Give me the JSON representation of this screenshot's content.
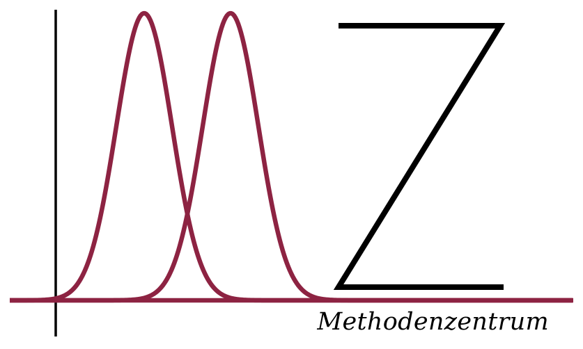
{
  "logo": {
    "wordmark": "Methodenzentrum",
    "letter_mark": "Z",
    "colors": {
      "curve": "#8d2342",
      "axes": "#000000",
      "background": "#ffffff"
    }
  }
}
